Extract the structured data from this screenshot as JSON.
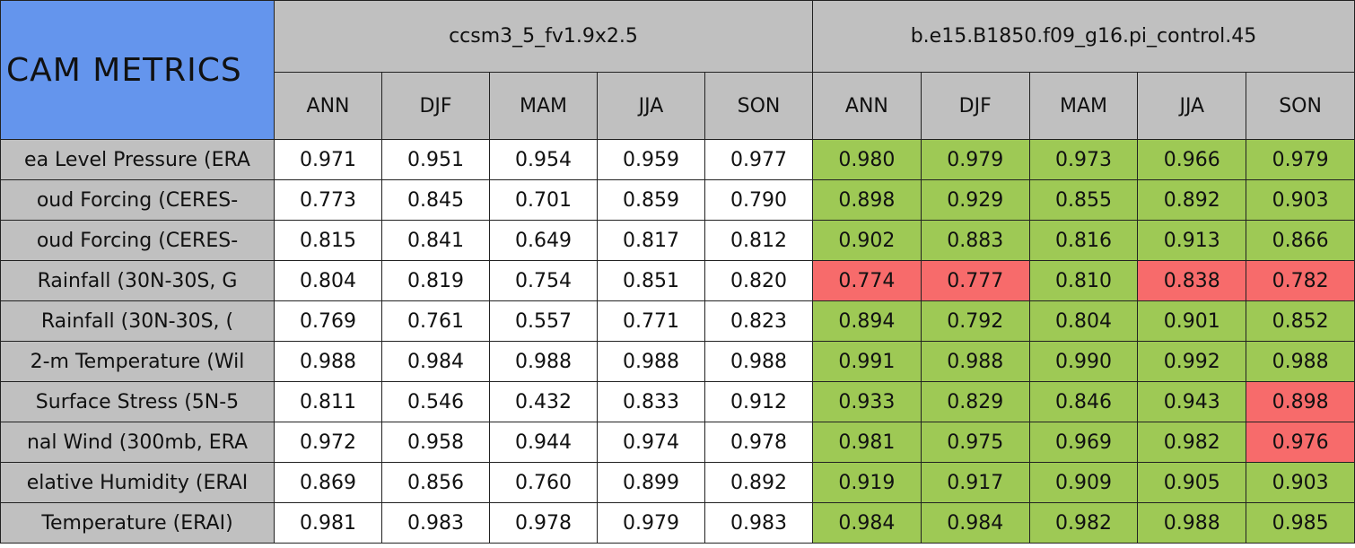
{
  "table": {
    "title": "CAM METRICS",
    "groups": [
      "ccsm3_5_fv1.9x2.5",
      "b.e15.B1850.f09_g16.pi_control.45"
    ],
    "group_colors": [
      null,
      null
    ],
    "seasons": [
      [
        "ANN",
        "DJF",
        "MAM",
        "JJA",
        "SON"
      ],
      [
        "ANN",
        "DJF",
        "MAM",
        "JJA",
        "SON"
      ]
    ],
    "rows": [
      {
        "label": "ea Level Pressure (ERA",
        "values": [
          "0.971",
          "0.951",
          "0.954",
          "0.959",
          "0.977",
          "0.980",
          "0.979",
          "0.973",
          "0.966",
          "0.979"
        ],
        "colors": [
          "#ffffff",
          "#ffffff",
          "#ffffff",
          "#ffffff",
          "#ffffff",
          "#9ec955",
          "#9ec955",
          "#9ec955",
          "#9ec955",
          "#9ec955"
        ]
      },
      {
        "label": "oud Forcing (CERES-",
        "values": [
          "0.773",
          "0.845",
          "0.701",
          "0.859",
          "0.790",
          "0.898",
          "0.929",
          "0.855",
          "0.892",
          "0.903"
        ],
        "colors": [
          "#ffffff",
          "#ffffff",
          "#ffffff",
          "#ffffff",
          "#ffffff",
          "#9ec955",
          "#9ec955",
          "#9ec955",
          "#9ec955",
          "#9ec955"
        ]
      },
      {
        "label": "oud Forcing (CERES-",
        "values": [
          "0.815",
          "0.841",
          "0.649",
          "0.817",
          "0.812",
          "0.902",
          "0.883",
          "0.816",
          "0.913",
          "0.866"
        ],
        "colors": [
          "#ffffff",
          "#ffffff",
          "#ffffff",
          "#ffffff",
          "#ffffff",
          "#9ec955",
          "#9ec955",
          "#9ec955",
          "#9ec955",
          "#9ec955"
        ]
      },
      {
        "label": "Rainfall (30N-30S, G",
        "values": [
          "0.804",
          "0.819",
          "0.754",
          "0.851",
          "0.820",
          "0.774",
          "0.777",
          "0.810",
          "0.838",
          "0.782"
        ],
        "colors": [
          "#ffffff",
          "#ffffff",
          "#ffffff",
          "#ffffff",
          "#ffffff",
          "#f76b6b",
          "#f76b6b",
          "#9ec955",
          "#f76b6b",
          "#f76b6b"
        ]
      },
      {
        "label": "Rainfall (30N-30S, (",
        "values": [
          "0.769",
          "0.761",
          "0.557",
          "0.771",
          "0.823",
          "0.894",
          "0.792",
          "0.804",
          "0.901",
          "0.852"
        ],
        "colors": [
          "#ffffff",
          "#ffffff",
          "#ffffff",
          "#ffffff",
          "#ffffff",
          "#9ec955",
          "#9ec955",
          "#9ec955",
          "#9ec955",
          "#9ec955"
        ]
      },
      {
        "label": "2-m Temperature (Wil",
        "values": [
          "0.988",
          "0.984",
          "0.988",
          "0.988",
          "0.988",
          "0.991",
          "0.988",
          "0.990",
          "0.992",
          "0.988"
        ],
        "colors": [
          "#ffffff",
          "#ffffff",
          "#ffffff",
          "#ffffff",
          "#ffffff",
          "#9ec955",
          "#9ec955",
          "#9ec955",
          "#9ec955",
          "#9ec955"
        ]
      },
      {
        "label": "Surface Stress (5N-5",
        "values": [
          "0.811",
          "0.546",
          "0.432",
          "0.833",
          "0.912",
          "0.933",
          "0.829",
          "0.846",
          "0.943",
          "0.898"
        ],
        "colors": [
          "#ffffff",
          "#ffffff",
          "#ffffff",
          "#ffffff",
          "#ffffff",
          "#9ec955",
          "#9ec955",
          "#9ec955",
          "#9ec955",
          "#f76b6b"
        ]
      },
      {
        "label": "nal Wind (300mb, ERA",
        "values": [
          "0.972",
          "0.958",
          "0.944",
          "0.974",
          "0.978",
          "0.981",
          "0.975",
          "0.969",
          "0.982",
          "0.976"
        ],
        "colors": [
          "#ffffff",
          "#ffffff",
          "#ffffff",
          "#ffffff",
          "#ffffff",
          "#9ec955",
          "#9ec955",
          "#9ec955",
          "#9ec955",
          "#f76b6b"
        ]
      },
      {
        "label": "elative Humidity (ERAI",
        "values": [
          "0.869",
          "0.856",
          "0.760",
          "0.899",
          "0.892",
          "0.919",
          "0.917",
          "0.909",
          "0.905",
          "0.903"
        ],
        "colors": [
          "#ffffff",
          "#ffffff",
          "#ffffff",
          "#ffffff",
          "#ffffff",
          "#9ec955",
          "#9ec955",
          "#9ec955",
          "#9ec955",
          "#9ec955"
        ]
      },
      {
        "label": "Temperature (ERAI)",
        "values": [
          "0.981",
          "0.983",
          "0.978",
          "0.979",
          "0.983",
          "0.984",
          "0.984",
          "0.982",
          "0.988",
          "0.985"
        ],
        "colors": [
          "#ffffff",
          "#ffffff",
          "#ffffff",
          "#ffffff",
          "#ffffff",
          "#9ec955",
          "#9ec955",
          "#9ec955",
          "#9ec955",
          "#9ec955"
        ]
      }
    ]
  }
}
